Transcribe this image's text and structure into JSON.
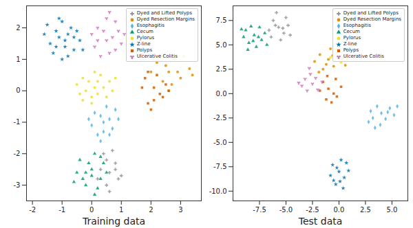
{
  "chart_data": [
    {
      "type": "scatter",
      "xlabel": "Training data",
      "legend": "upper right",
      "xlim": [
        -2.2,
        3.7
      ],
      "xticks": [
        -2,
        -1,
        0,
        1,
        2,
        3
      ],
      "ylim": [
        -3.5,
        2.7
      ],
      "yticks": [
        -3,
        -2,
        -1,
        0,
        1,
        2
      ],
      "series": [
        {
          "name": "Dyed and Lifted Polyps",
          "color": "#949494",
          "marker": "cross",
          "values": [
            [
              0.6,
              -2.6
            ],
            [
              0.4,
              -2.0
            ],
            [
              0.8,
              -2.3
            ],
            [
              0.5,
              -3.0
            ],
            [
              0.9,
              -2.8
            ],
            [
              0.3,
              -2.5
            ],
            [
              0.7,
              -1.9
            ],
            [
              0.6,
              -3.2
            ],
            [
              0.2,
              -2.8
            ],
            [
              0.8,
              -2.5
            ],
            [
              0.5,
              -2.2
            ],
            [
              1.0,
              -2.7
            ]
          ]
        },
        {
          "name": "Dyed Resection Margins",
          "color": "#de8f05",
          "marker": "circle",
          "values": [
            [
              2.6,
              0.6
            ],
            [
              2.2,
              0.9
            ],
            [
              3.0,
              0.4
            ],
            [
              2.8,
              1.0
            ],
            [
              2.4,
              0.3
            ],
            [
              3.3,
              0.7
            ],
            [
              2.0,
              0.6
            ],
            [
              2.7,
              0.2
            ],
            [
              3.1,
              1.1
            ],
            [
              2.5,
              0.8
            ],
            [
              2.9,
              0.6
            ],
            [
              2.3,
              1.1
            ],
            [
              3.4,
              0.5
            ],
            [
              2.6,
              0.0
            ]
          ]
        },
        {
          "name": "Esophagitis",
          "color": "#56b4e9",
          "marker": "diamond",
          "values": [
            [
              0.4,
              -1.0
            ],
            [
              0.1,
              -0.7
            ],
            [
              0.7,
              -1.2
            ],
            [
              0.2,
              -1.4
            ],
            [
              0.8,
              -0.6
            ],
            [
              0.5,
              -0.5
            ],
            [
              0.0,
              -1.1
            ],
            [
              0.9,
              -0.9
            ],
            [
              0.3,
              -1.6
            ],
            [
              0.6,
              -1.4
            ],
            [
              0.3,
              -0.8
            ],
            [
              0.6,
              -0.9
            ],
            [
              -0.1,
              -0.9
            ],
            [
              0.4,
              -1.3
            ]
          ]
        },
        {
          "name": "Cecum",
          "color": "#029e73",
          "marker": "triangle",
          "values": [
            [
              0.0,
              -2.5
            ],
            [
              -0.4,
              -2.2
            ],
            [
              0.3,
              -2.8
            ],
            [
              -0.2,
              -3.0
            ],
            [
              0.4,
              -2.3
            ],
            [
              -0.5,
              -2.6
            ],
            [
              0.1,
              -2.0
            ],
            [
              0.2,
              -3.1
            ],
            [
              -0.3,
              -2.8
            ],
            [
              0.5,
              -2.6
            ],
            [
              -0.1,
              -2.3
            ],
            [
              -0.6,
              -2.9
            ],
            [
              0.0,
              -2.7
            ],
            [
              0.3,
              -2.1
            ],
            [
              -0.2,
              -2.6
            ],
            [
              0.1,
              -3.3
            ]
          ]
        },
        {
          "name": "Pylorus",
          "color": "#ece133",
          "marker": "circle",
          "values": [
            [
              0.1,
              0.1
            ],
            [
              -0.3,
              0.4
            ],
            [
              0.5,
              -0.2
            ],
            [
              -0.4,
              -0.1
            ],
            [
              0.3,
              0.5
            ],
            [
              0.0,
              -0.4
            ],
            [
              0.6,
              0.3
            ],
            [
              -0.2,
              0.0
            ],
            [
              0.2,
              -0.1
            ],
            [
              -0.5,
              0.2
            ],
            [
              0.7,
              0.0
            ],
            [
              0.1,
              0.6
            ],
            [
              -0.1,
              0.3
            ],
            [
              0.4,
              0.1
            ],
            [
              -0.3,
              -0.3
            ],
            [
              0.2,
              0.3
            ],
            [
              0.8,
              0.4
            ],
            [
              0.0,
              -0.2
            ]
          ]
        },
        {
          "name": "Z-line",
          "color": "#0173b2",
          "marker": "star",
          "values": [
            [
              -0.9,
              1.6
            ],
            [
              -1.2,
              1.9
            ],
            [
              -0.6,
              1.3
            ],
            [
              -1.4,
              1.5
            ],
            [
              -0.5,
              1.9
            ],
            [
              -1.0,
              2.2
            ],
            [
              -0.8,
              1.1
            ],
            [
              -1.3,
              1.2
            ],
            [
              -0.4,
              1.6
            ],
            [
              -1.1,
              1.7
            ],
            [
              -0.7,
              2.0
            ],
            [
              -1.6,
              1.8
            ],
            [
              -0.9,
              1.4
            ],
            [
              -1.2,
              1.4
            ],
            [
              -0.6,
              1.7
            ],
            [
              -1.0,
              1.0
            ],
            [
              -0.3,
              1.3
            ],
            [
              -1.5,
              2.1
            ],
            [
              -0.8,
              1.8
            ],
            [
              -1.1,
              2.3
            ]
          ]
        },
        {
          "name": "Polyps",
          "color": "#d55e00",
          "marker": "square",
          "values": [
            [
              2.1,
              0.1
            ],
            [
              1.8,
              0.4
            ],
            [
              2.4,
              -0.2
            ],
            [
              1.9,
              -0.4
            ],
            [
              2.2,
              0.5
            ],
            [
              1.7,
              0.1
            ],
            [
              2.5,
              0.2
            ],
            [
              2.0,
              -0.6
            ],
            [
              2.3,
              -0.1
            ],
            [
              1.9,
              0.6
            ],
            [
              2.1,
              -0.3
            ],
            [
              2.6,
              0.0
            ]
          ]
        },
        {
          "name": "Ulcerative Colitis",
          "color": "#cc78bc",
          "marker": "wye",
          "values": [
            [
              0.5,
              1.6
            ],
            [
              0.2,
              2.0
            ],
            [
              0.8,
              1.3
            ],
            [
              0.1,
              1.4
            ],
            [
              0.9,
              1.9
            ],
            [
              0.5,
              2.3
            ],
            [
              0.3,
              1.1
            ],
            [
              0.7,
              1.7
            ],
            [
              0.0,
              1.8
            ],
            [
              1.0,
              1.5
            ],
            [
              0.4,
              1.9
            ],
            [
              0.6,
              1.2
            ],
            [
              0.8,
              2.2
            ],
            [
              0.2,
              1.6
            ],
            [
              0.6,
              2.5
            ],
            [
              1.1,
              1.8
            ]
          ]
        }
      ]
    },
    {
      "type": "scatter",
      "xlabel": "Test data",
      "legend": "upper right",
      "xlim": [
        -10,
        6.5
      ],
      "xticks": [
        -7.5,
        {
          "value": -5,
          "label": "-5.0"
        },
        -2.5,
        {
          "value": 0,
          "label": "0.0"
        },
        2.5,
        {
          "value": 5,
          "label": "5.0"
        }
      ],
      "ylim": [
        -11,
        9
      ],
      "yticks": [
        {
          "value": -10,
          "label": "-10.0"
        },
        -7.5,
        {
          "value": -5,
          "label": "-5.0"
        },
        -2.5,
        {
          "value": 0,
          "label": "0.0"
        },
        2.5,
        {
          "value": 5,
          "label": "5.0"
        },
        7.5
      ],
      "series": [
        {
          "name": "Dyed and Lifted Polyps",
          "color": "#949494",
          "marker": "cross",
          "values": [
            [
              -5.7,
              6.8
            ],
            [
              -6.2,
              7.5
            ],
            [
              -5.2,
              6.2
            ],
            [
              -5.9,
              8.3
            ],
            [
              -6.6,
              6.5
            ],
            [
              -4.8,
              7.0
            ],
            [
              -5.5,
              5.5
            ],
            [
              -6.0,
              7.0
            ],
            [
              -5.0,
              7.8
            ],
            [
              -6.4,
              5.8
            ],
            [
              -5.3,
              6.7
            ],
            [
              -4.6,
              6.0
            ]
          ]
        },
        {
          "name": "Dyed Resection Margins",
          "color": "#de8f05",
          "marker": "circle",
          "values": [
            [
              -1.0,
              3.5
            ],
            [
              -1.8,
              4.0
            ],
            [
              -0.5,
              2.8
            ],
            [
              -1.5,
              2.5
            ],
            [
              -0.2,
              4.2
            ],
            [
              -2.3,
              3.3
            ],
            [
              -0.8,
              4.6
            ],
            [
              -1.2,
              3.0
            ],
            [
              0.3,
              3.6
            ],
            [
              -1.9,
              2.2
            ],
            [
              -0.6,
              3.9
            ],
            [
              0.6,
              2.9
            ]
          ]
        },
        {
          "name": "Esophagitis",
          "color": "#56b4e9",
          "marker": "diamond",
          "values": [
            [
              4.0,
              -2.0
            ],
            [
              3.2,
              -2.5
            ],
            [
              4.8,
              -1.5
            ],
            [
              3.6,
              -1.3
            ],
            [
              5.2,
              -2.2
            ],
            [
              2.8,
              -2.9
            ],
            [
              4.4,
              -2.6
            ],
            [
              3.9,
              -3.2
            ],
            [
              5.5,
              -1.3
            ],
            [
              3.0,
              -1.8
            ],
            [
              4.6,
              -1.9
            ],
            [
              3.4,
              -3.5
            ]
          ]
        },
        {
          "name": "Cecum",
          "color": "#029e73",
          "marker": "triangle",
          "values": [
            [
              -8.0,
              6.0
            ],
            [
              -8.8,
              6.5
            ],
            [
              -7.3,
              5.5
            ],
            [
              -8.5,
              5.2
            ],
            [
              -7.5,
              6.8
            ],
            [
              -9.0,
              5.8
            ],
            [
              -7.8,
              4.8
            ],
            [
              -8.3,
              6.9
            ],
            [
              -7.0,
              6.2
            ],
            [
              -8.6,
              4.5
            ],
            [
              -7.6,
              5.8
            ],
            [
              -9.2,
              6.6
            ],
            [
              -8.1,
              5.4
            ],
            [
              -6.8,
              5.0
            ]
          ]
        },
        {
          "name": "Pylorus",
          "color": "#ece133",
          "marker": "circle",
          "values": [
            [
              0.5,
              3.9
            ],
            [
              1.0,
              4.4
            ],
            [
              -0.3,
              4.6
            ],
            [
              1.6,
              3.8
            ],
            [
              0.2,
              3.2
            ],
            [
              1.3,
              4.9
            ],
            [
              -0.8,
              3.7
            ],
            [
              0.7,
              3.4
            ],
            [
              1.9,
              4.3
            ],
            [
              0.0,
              4.0
            ]
          ]
        },
        {
          "name": "Z-line",
          "color": "#0173b2",
          "marker": "star",
          "values": [
            [
              0.0,
              -8.0
            ],
            [
              -0.6,
              -7.3
            ],
            [
              0.5,
              -8.6
            ],
            [
              -0.3,
              -9.3
            ],
            [
              0.7,
              -7.1
            ],
            [
              -0.8,
              -8.4
            ],
            [
              0.2,
              -6.8
            ],
            [
              0.4,
              -9.7
            ],
            [
              -0.5,
              -8.9
            ],
            [
              0.9,
              -7.9
            ],
            [
              -0.2,
              -7.6
            ],
            [
              0.1,
              -9.0
            ]
          ]
        },
        {
          "name": "Polyps",
          "color": "#d55e00",
          "marker": "square",
          "values": [
            [
              -1.0,
              0.5
            ],
            [
              -1.5,
              1.2
            ],
            [
              -0.5,
              0.0
            ],
            [
              -1.2,
              -0.6
            ],
            [
              -0.3,
              1.5
            ],
            [
              -1.8,
              0.3
            ],
            [
              -0.7,
              -0.9
            ],
            [
              0.2,
              0.7
            ],
            [
              -1.1,
              1.8
            ],
            [
              -0.2,
              -0.3
            ]
          ]
        },
        {
          "name": "Ulcerative Colitis",
          "color": "#cc78bc",
          "marker": "wye",
          "values": [
            [
              -2.5,
              1.0
            ],
            [
              -3.2,
              1.5
            ],
            [
              -2.0,
              0.4
            ],
            [
              -3.8,
              1.1
            ],
            [
              -2.7,
              2.0
            ],
            [
              -1.6,
              1.2
            ],
            [
              -3.0,
              0.3
            ],
            [
              -2.2,
              1.6
            ],
            [
              -3.5,
              0.8
            ],
            [
              -2.8,
              2.6
            ]
          ]
        }
      ]
    }
  ]
}
